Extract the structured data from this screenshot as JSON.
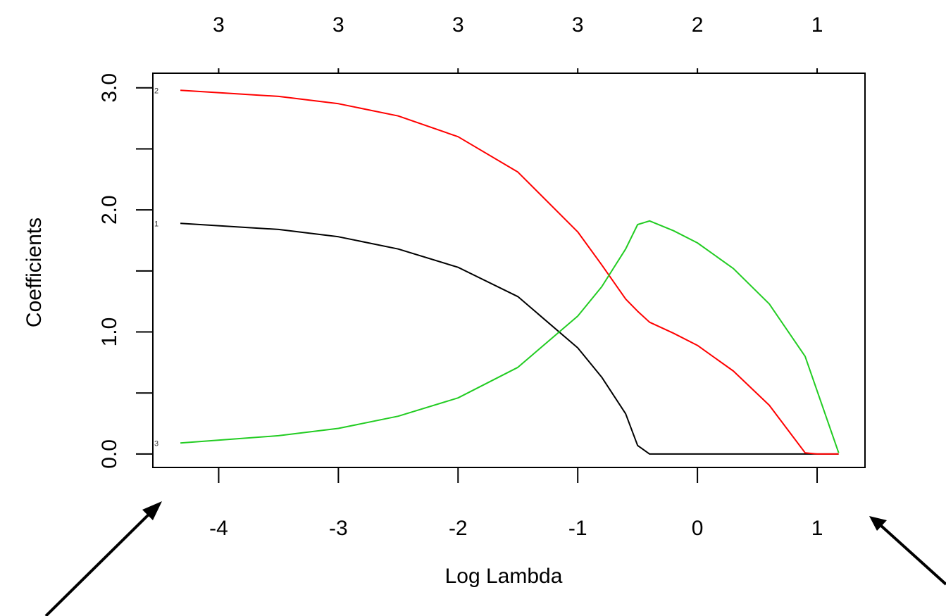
{
  "chart_data": {
    "type": "line",
    "title": "",
    "xlabel": "Log Lambda",
    "ylabel": "Coefficients",
    "xlim": [
      -4.55,
      1.4
    ],
    "ylim": [
      -0.11,
      3.12
    ],
    "x_ticks": [
      -4,
      -3,
      -2,
      -1,
      0,
      1
    ],
    "x_tick_labels": [
      "-4",
      "-3",
      "-2",
      "-1",
      "0",
      "1"
    ],
    "y_ticks": [
      0.0,
      0.5,
      1.0,
      1.5,
      2.0,
      2.5,
      3.0
    ],
    "y_tick_labels": [
      "0.0",
      "",
      "1.0",
      "",
      "2.0",
      "",
      "3.0"
    ],
    "top_axis_labels": [
      "3",
      "3",
      "3",
      "3",
      "2",
      "1"
    ],
    "grid": false,
    "legend": "none",
    "series": [
      {
        "label": "1",
        "color": "#000000",
        "x": [
          -4.32,
          -3.5,
          -3.0,
          -2.5,
          -2.0,
          -1.5,
          -1.0,
          -0.8,
          -0.6,
          -0.5,
          -0.4,
          0.0,
          0.5,
          1.0,
          1.18
        ],
        "y": [
          1.89,
          1.84,
          1.78,
          1.68,
          1.53,
          1.29,
          0.87,
          0.63,
          0.33,
          0.07,
          0.0,
          0.0,
          0.0,
          0.0,
          0.0
        ]
      },
      {
        "label": "2",
        "color": "#ff0000",
        "x": [
          -4.32,
          -3.5,
          -3.0,
          -2.5,
          -2.0,
          -1.5,
          -1.0,
          -0.8,
          -0.6,
          -0.5,
          -0.4,
          -0.2,
          0.0,
          0.3,
          0.6,
          0.9,
          1.0,
          1.18
        ],
        "y": [
          2.98,
          2.93,
          2.87,
          2.77,
          2.6,
          2.31,
          1.82,
          1.55,
          1.27,
          1.17,
          1.08,
          0.99,
          0.89,
          0.68,
          0.4,
          0.01,
          0.0,
          0.0
        ]
      },
      {
        "label": "3",
        "color": "#22cc22",
        "x": [
          -4.32,
          -3.5,
          -3.0,
          -2.5,
          -2.0,
          -1.5,
          -1.0,
          -0.8,
          -0.6,
          -0.5,
          -0.4,
          -0.2,
          0.0,
          0.3,
          0.6,
          0.9,
          1.18
        ],
        "y": [
          0.09,
          0.15,
          0.21,
          0.31,
          0.46,
          0.71,
          1.13,
          1.37,
          1.68,
          1.88,
          1.91,
          1.83,
          1.73,
          1.52,
          1.23,
          0.8,
          0.01
        ]
      }
    ]
  }
}
